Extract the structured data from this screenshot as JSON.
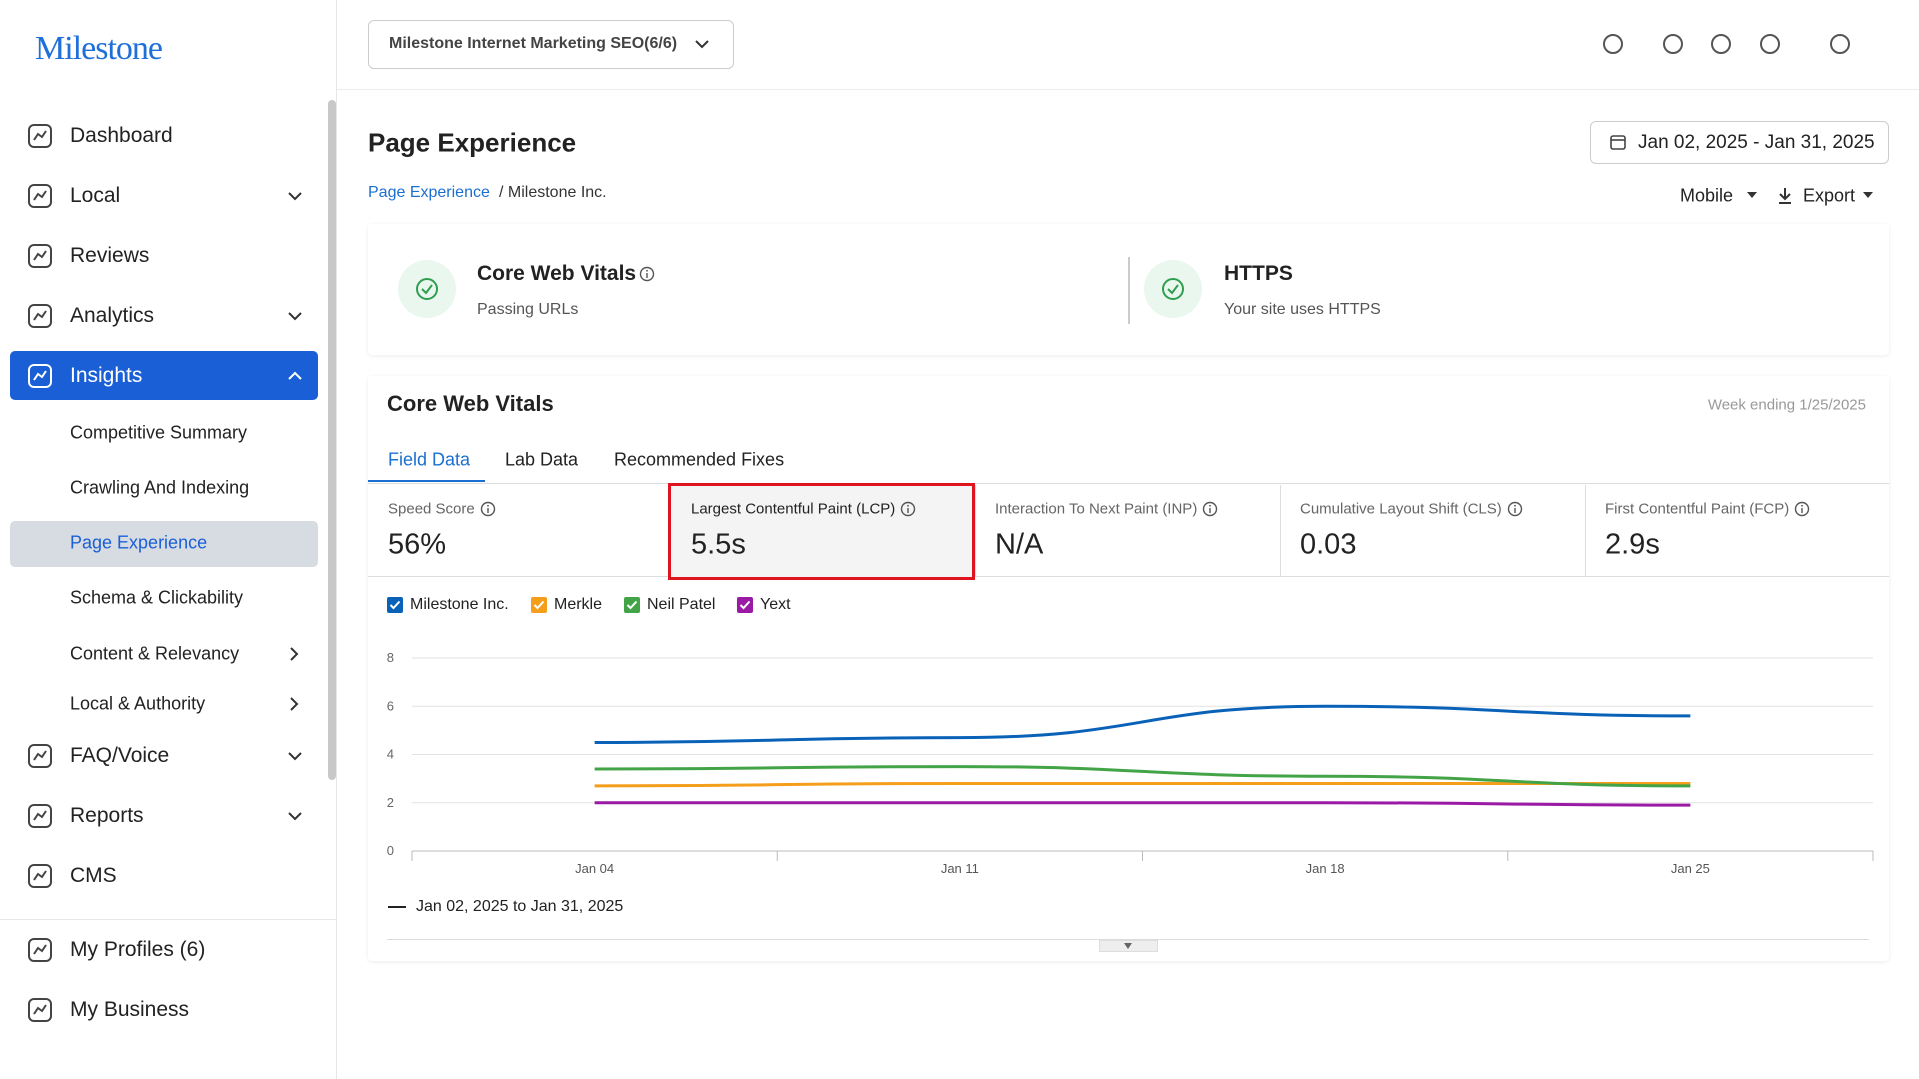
{
  "sidebar": {
    "logo": "Milestone",
    "items": [
      "Dashboard",
      "Local",
      "Reviews",
      "Analytics",
      "Insights"
    ],
    "insights_sub": [
      "Competitive Summary",
      "Crawling And Indexing",
      "Page Experience",
      "Schema & Clickability",
      "Content & Relevancy",
      "Local & Authority"
    ],
    "items_after": [
      "FAQ/Voice",
      "Reports",
      "CMS"
    ],
    "footer": [
      "My Profiles (6)",
      "My Business"
    ]
  },
  "header": {
    "account": "Milestone Internet Marketing SEO(6/6)"
  },
  "page": {
    "title": "Page Experience",
    "date_range": "Jan 02, 2025 - Jan 31, 2025",
    "breadcrumb": {
      "link": "Page Experience",
      "current": "/ Milestone Inc."
    },
    "device": "Mobile",
    "export": "Export"
  },
  "summary": [
    {
      "title": "Core Web Vitals",
      "subtitle": "Passing URLs"
    },
    {
      "title": "HTTPS",
      "subtitle": "Your site uses HTTPS"
    }
  ],
  "vitals": {
    "title": "Core Web Vitals",
    "note": "Week ending 1/25/2025",
    "tabs": [
      "Field Data",
      "Lab Data",
      "Recommended Fixes"
    ],
    "metrics": [
      {
        "label": "Speed Score",
        "value": "56%"
      },
      {
        "label": "Largest Contentful Paint (LCP)",
        "value": "5.5s"
      },
      {
        "label": "Interaction To Next Paint (INP)",
        "value": "N/A"
      },
      {
        "label": "Cumulative Layout Shift (CLS)",
        "value": "0.03"
      },
      {
        "label": "First Contentful Paint (FCP)",
        "value": "2.9s"
      }
    ]
  },
  "chart_data": {
    "type": "line",
    "categories": [
      "Jan 04",
      "Jan 11",
      "Jan 18",
      "Jan 25"
    ],
    "series": [
      {
        "name": "Milestone Inc.",
        "color": "#0a62b8",
        "values": [
          4.5,
          4.7,
          6.0,
          5.6
        ]
      },
      {
        "name": "Merkle",
        "color": "#f59e1b",
        "values": [
          2.7,
          2.8,
          2.8,
          2.8
        ]
      },
      {
        "name": "Neil Patel",
        "color": "#43a447",
        "values": [
          3.4,
          3.5,
          3.1,
          2.7
        ]
      },
      {
        "name": "Yext",
        "color": "#9a1aa6",
        "values": [
          2.0,
          2.0,
          2.0,
          1.9
        ]
      }
    ],
    "ylim": [
      0,
      8
    ],
    "yticks": [
      0,
      2,
      4,
      6,
      8
    ],
    "grid": true,
    "period_label": "Jan 02, 2025 to Jan 31, 2025"
  }
}
